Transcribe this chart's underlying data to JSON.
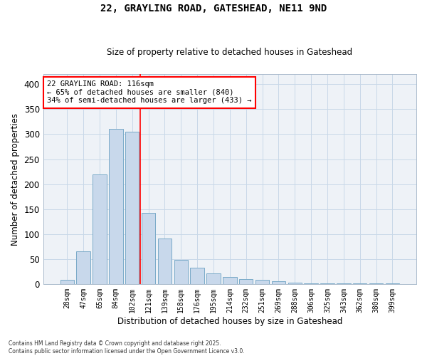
{
  "title1": "22, GRAYLING ROAD, GATESHEAD, NE11 9ND",
  "title2": "Size of property relative to detached houses in Gateshead",
  "xlabel": "Distribution of detached houses by size in Gateshead",
  "ylabel": "Number of detached properties",
  "categories": [
    "28sqm",
    "47sqm",
    "65sqm",
    "84sqm",
    "102sqm",
    "121sqm",
    "139sqm",
    "158sqm",
    "176sqm",
    "195sqm",
    "214sqm",
    "232sqm",
    "251sqm",
    "269sqm",
    "288sqm",
    "306sqm",
    "325sqm",
    "343sqm",
    "362sqm",
    "380sqm",
    "399sqm"
  ],
  "bar_values": [
    9,
    65,
    220,
    310,
    305,
    143,
    91,
    48,
    32,
    21,
    14,
    10,
    9,
    5,
    2,
    1,
    1,
    1,
    1,
    1,
    1
  ],
  "bar_color": "#c8d8eb",
  "bar_edge_color": "#7aaac8",
  "grid_color": "#c8d8e8",
  "background_color": "#eef2f7",
  "annotation_text_line1": "22 GRAYLING ROAD: 116sqm",
  "annotation_text_line2": "← 65% of detached houses are smaller (840)",
  "annotation_text_line3": "34% of semi-detached houses are larger (433) →",
  "footer_line1": "Contains HM Land Registry data © Crown copyright and database right 2025.",
  "footer_line2": "Contains public sector information licensed under the Open Government Licence v3.0.",
  "ylim": [
    0,
    420
  ],
  "yticks": [
    0,
    50,
    100,
    150,
    200,
    250,
    300,
    350,
    400
  ],
  "red_line_x": 4.5
}
